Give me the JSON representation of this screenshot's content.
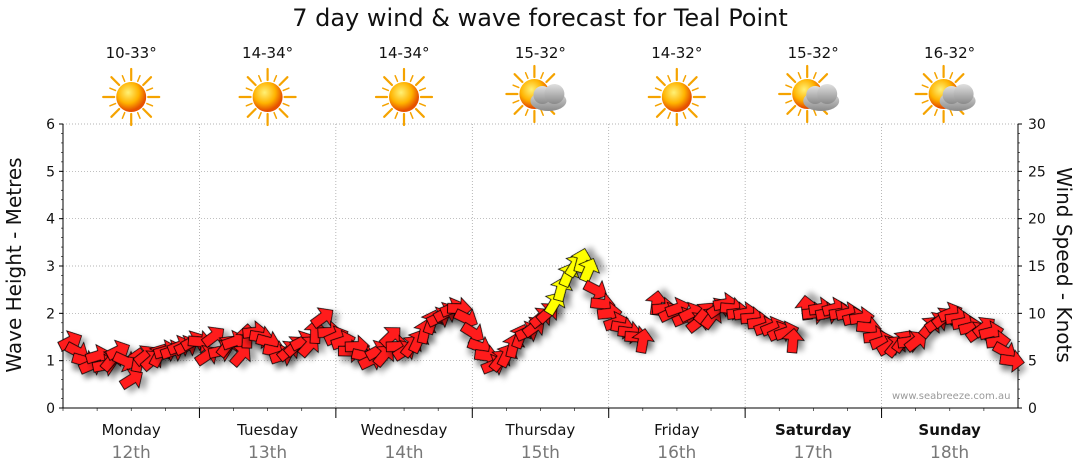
{
  "page_title": "7 day wind & wave forecast for Teal Point",
  "watermark": "www.seabreeze.com.au",
  "days": [
    {
      "name": "Monday",
      "date": "12th",
      "temp": "10-33°",
      "icon": "sun-icon",
      "bold": false
    },
    {
      "name": "Tuesday",
      "date": "13th",
      "temp": "14-34°",
      "icon": "sun-icon",
      "bold": false
    },
    {
      "name": "Wednesday",
      "date": "14th",
      "temp": "14-34°",
      "icon": "sun-icon",
      "bold": false
    },
    {
      "name": "Thursday",
      "date": "15th",
      "temp": "15-32°",
      "icon": "partly-cloudy-icon",
      "bold": false
    },
    {
      "name": "Friday",
      "date": "16th",
      "temp": "14-32°",
      "icon": "sun-icon",
      "bold": false
    },
    {
      "name": "Saturday",
      "date": "17th",
      "temp": "15-32°",
      "icon": "partly-cloudy-icon",
      "bold": true
    },
    {
      "name": "Sunday",
      "date": "18th",
      "temp": "16-32°",
      "icon": "partly-cloudy-icon",
      "bold": true
    }
  ],
  "colors": {
    "arrow_red": "#ff1a1a",
    "arrow_yellow": "#ffff00",
    "grid": "#9a9a9a",
    "axis": "#000000"
  },
  "chart_data": {
    "type": "scatter",
    "title": "7 day wind & wave forecast for Teal Point",
    "y_left_label": "Wave Height - Metres",
    "y_right_label": "Wind Speed - Knots",
    "y_left_range": [
      0,
      6
    ],
    "y_right_range": [
      0,
      30
    ],
    "y_left_ticks": [
      "0",
      "1",
      "2",
      "3",
      "4",
      "5",
      "6"
    ],
    "y_right_ticks": [
      "0",
      "5",
      "10",
      "15",
      "20",
      "25",
      "30"
    ],
    "x_range_days": [
      0,
      7
    ],
    "grid": true,
    "series": [
      {
        "values": [
          [
            0.05,
            7.0,
            "red"
          ],
          [
            0.1,
            6.0,
            "red"
          ],
          [
            0.15,
            5.0,
            "red"
          ],
          [
            0.2,
            4.5,
            "red"
          ],
          [
            0.25,
            5.5,
            "red"
          ],
          [
            0.3,
            4.5,
            "red"
          ],
          [
            0.35,
            5.0,
            "red"
          ],
          [
            0.4,
            6.0,
            "red"
          ],
          [
            0.45,
            5.0,
            "red"
          ],
          [
            0.5,
            3.0,
            "red"
          ],
          [
            0.55,
            5.0,
            "red"
          ],
          [
            0.6,
            5.5,
            "red"
          ],
          [
            0.65,
            5.0,
            "red"
          ],
          [
            0.7,
            5.5,
            "red"
          ],
          [
            0.75,
            6.0,
            "red"
          ],
          [
            0.8,
            6.0,
            "red"
          ],
          [
            0.85,
            6.5,
            "red"
          ],
          [
            0.9,
            6.5,
            "red"
          ],
          [
            0.95,
            7.0,
            "red"
          ],
          [
            1.0,
            7.0,
            "red"
          ],
          [
            1.05,
            5.5,
            "red"
          ],
          [
            1.1,
            7.5,
            "red"
          ],
          [
            1.15,
            6.0,
            "red"
          ],
          [
            1.2,
            6.5,
            "red"
          ],
          [
            1.25,
            7.0,
            "red"
          ],
          [
            1.3,
            5.5,
            "red"
          ],
          [
            1.35,
            7.5,
            "red"
          ],
          [
            1.4,
            8.0,
            "red"
          ],
          [
            1.45,
            7.5,
            "red"
          ],
          [
            1.5,
            7.0,
            "red"
          ],
          [
            1.55,
            6.0,
            "red"
          ],
          [
            1.6,
            5.5,
            "red"
          ],
          [
            1.65,
            6.0,
            "red"
          ],
          [
            1.7,
            6.5,
            "red"
          ],
          [
            1.75,
            7.0,
            "red"
          ],
          [
            1.8,
            6.5,
            "red"
          ],
          [
            1.85,
            8.0,
            "red"
          ],
          [
            1.9,
            9.5,
            "red"
          ],
          [
            1.95,
            8.0,
            "red"
          ],
          [
            2.0,
            7.5,
            "red"
          ],
          [
            2.05,
            7.0,
            "red"
          ],
          [
            2.1,
            6.0,
            "red"
          ],
          [
            2.15,
            6.5,
            "red"
          ],
          [
            2.2,
            5.5,
            "red"
          ],
          [
            2.25,
            5.0,
            "red"
          ],
          [
            2.3,
            6.0,
            "red"
          ],
          [
            2.35,
            5.5,
            "red"
          ],
          [
            2.4,
            7.5,
            "red"
          ],
          [
            2.45,
            6.5,
            "red"
          ],
          [
            2.5,
            6.0,
            "red"
          ],
          [
            2.55,
            6.5,
            "red"
          ],
          [
            2.6,
            7.0,
            "red"
          ],
          [
            2.65,
            8.0,
            "red"
          ],
          [
            2.7,
            9.0,
            "red"
          ],
          [
            2.75,
            9.5,
            "red"
          ],
          [
            2.8,
            10.0,
            "red"
          ],
          [
            2.85,
            10.5,
            "red"
          ],
          [
            2.9,
            10.5,
            "red"
          ],
          [
            2.95,
            9.5,
            "red"
          ],
          [
            3.0,
            8.0,
            "red"
          ],
          [
            3.05,
            6.5,
            "red"
          ],
          [
            3.1,
            5.5,
            "red"
          ],
          [
            3.15,
            4.5,
            "red"
          ],
          [
            3.2,
            5.0,
            "red"
          ],
          [
            3.25,
            5.5,
            "red"
          ],
          [
            3.3,
            6.5,
            "red"
          ],
          [
            3.35,
            7.5,
            "red"
          ],
          [
            3.4,
            8.0,
            "red"
          ],
          [
            3.45,
            8.5,
            "red"
          ],
          [
            3.5,
            9.5,
            "red"
          ],
          [
            3.55,
            10.0,
            "red"
          ],
          [
            3.6,
            11.0,
            "yellow"
          ],
          [
            3.65,
            12.5,
            "yellow"
          ],
          [
            3.7,
            14.0,
            "yellow"
          ],
          [
            3.75,
            15.0,
            "yellow"
          ],
          [
            3.8,
            15.5,
            "yellow"
          ],
          [
            3.85,
            14.5,
            "yellow"
          ],
          [
            3.9,
            12.5,
            "red"
          ],
          [
            3.95,
            11.0,
            "red"
          ],
          [
            4.0,
            10.0,
            "red"
          ],
          [
            4.05,
            9.0,
            "red"
          ],
          [
            4.1,
            8.5,
            "red"
          ],
          [
            4.15,
            8.0,
            "red"
          ],
          [
            4.2,
            7.5,
            "red"
          ],
          [
            4.25,
            7.0,
            "red"
          ],
          [
            4.35,
            11.0,
            "red"
          ],
          [
            4.4,
            10.5,
            "red"
          ],
          [
            4.45,
            10.0,
            "red"
          ],
          [
            4.5,
            10.5,
            "red"
          ],
          [
            4.55,
            9.5,
            "red"
          ],
          [
            4.6,
            10.0,
            "red"
          ],
          [
            4.65,
            9.0,
            "red"
          ],
          [
            4.7,
            10.0,
            "red"
          ],
          [
            4.75,
            9.5,
            "red"
          ],
          [
            4.8,
            10.5,
            "red"
          ],
          [
            4.85,
            11.0,
            "red"
          ],
          [
            4.9,
            10.5,
            "red"
          ],
          [
            4.95,
            10.0,
            "red"
          ],
          [
            5.0,
            10.0,
            "red"
          ],
          [
            5.05,
            9.5,
            "red"
          ],
          [
            5.1,
            9.0,
            "red"
          ],
          [
            5.15,
            8.5,
            "red"
          ],
          [
            5.2,
            8.5,
            "red"
          ],
          [
            5.25,
            8.0,
            "red"
          ],
          [
            5.3,
            8.0,
            "red"
          ],
          [
            5.35,
            7.0,
            "red"
          ],
          [
            5.45,
            10.5,
            "red"
          ],
          [
            5.5,
            10.0,
            "red"
          ],
          [
            5.55,
            10.5,
            "red"
          ],
          [
            5.6,
            10.0,
            "red"
          ],
          [
            5.65,
            10.5,
            "red"
          ],
          [
            5.7,
            10.0,
            "red"
          ],
          [
            5.75,
            10.0,
            "red"
          ],
          [
            5.8,
            9.5,
            "red"
          ],
          [
            5.85,
            9.5,
            "red"
          ],
          [
            5.9,
            8.5,
            "red"
          ],
          [
            5.95,
            7.5,
            "red"
          ],
          [
            6.0,
            7.0,
            "red"
          ],
          [
            6.05,
            6.5,
            "red"
          ],
          [
            6.1,
            6.5,
            "red"
          ],
          [
            6.15,
            7.0,
            "red"
          ],
          [
            6.2,
            7.0,
            "red"
          ],
          [
            6.25,
            7.0,
            "red"
          ],
          [
            6.35,
            8.5,
            "red"
          ],
          [
            6.4,
            9.0,
            "red"
          ],
          [
            6.45,
            9.5,
            "red"
          ],
          [
            6.5,
            10.0,
            "red"
          ],
          [
            6.55,
            9.5,
            "red"
          ],
          [
            6.6,
            9.0,
            "red"
          ],
          [
            6.65,
            8.5,
            "red"
          ],
          [
            6.7,
            8.0,
            "red"
          ],
          [
            6.75,
            8.5,
            "red"
          ],
          [
            6.8,
            8.0,
            "red"
          ],
          [
            6.85,
            7.0,
            "red"
          ],
          [
            6.9,
            6.0,
            "red"
          ],
          [
            6.95,
            5.0,
            "red"
          ]
        ]
      }
    ]
  }
}
